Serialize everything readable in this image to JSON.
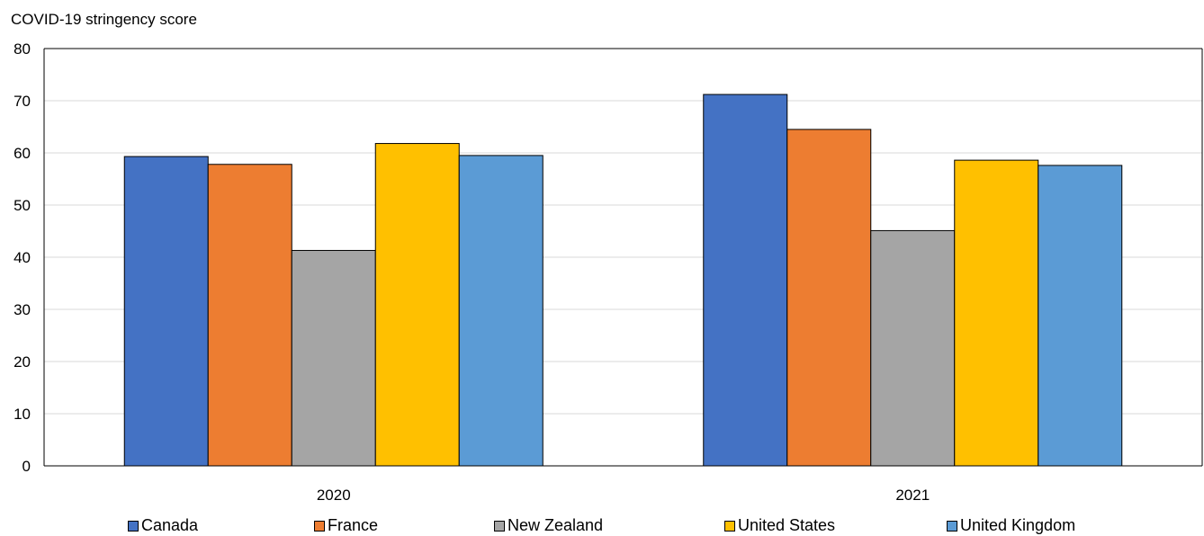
{
  "chart_data": {
    "type": "bar",
    "ylabel": "COVID-19 stringency score",
    "xlabel": "",
    "categories": [
      "2020",
      "2021"
    ],
    "ylim": [
      0,
      80
    ],
    "yticks": [
      0,
      10,
      20,
      30,
      40,
      50,
      60,
      70,
      80
    ],
    "grid": true,
    "legend_position": "bottom",
    "series": [
      {
        "name": "Canada",
        "color": "#4472C4",
        "values": [
          59.3,
          71.2
        ]
      },
      {
        "name": "France",
        "color": "#ED7D31",
        "values": [
          57.8,
          64.5
        ]
      },
      {
        "name": "New Zealand",
        "color": "#A5A5A5",
        "values": [
          41.3,
          45.1
        ]
      },
      {
        "name": "United States",
        "color": "#FFC000",
        "values": [
          61.8,
          58.6
        ]
      },
      {
        "name": "United Kingdom",
        "color": "#5B9BD5",
        "values": [
          59.5,
          57.6
        ]
      }
    ]
  }
}
